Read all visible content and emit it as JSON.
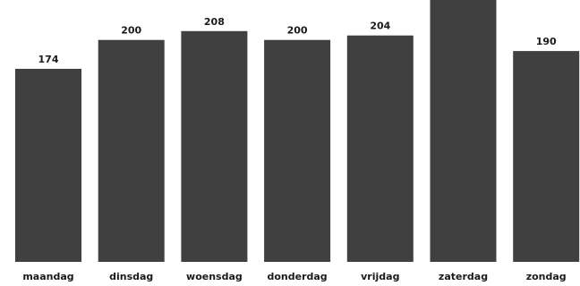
{
  "chart_data": {
    "type": "bar",
    "categories": [
      "maandag",
      "dinsdag",
      "woensdag",
      "donderdag",
      "vrijdag",
      "zaterdag",
      "zondag"
    ],
    "values": [
      174,
      200,
      208,
      200,
      204,
      246,
      190
    ],
    "value_labels": [
      "174",
      "200",
      "208",
      "200",
      "204",
      "",
      "190"
    ],
    "ylim": [
      0,
      236
    ],
    "grid": false,
    "legend": "none",
    "bar_color": "#404040",
    "text_color": "#1a1a1a",
    "background": "#ffffff"
  }
}
